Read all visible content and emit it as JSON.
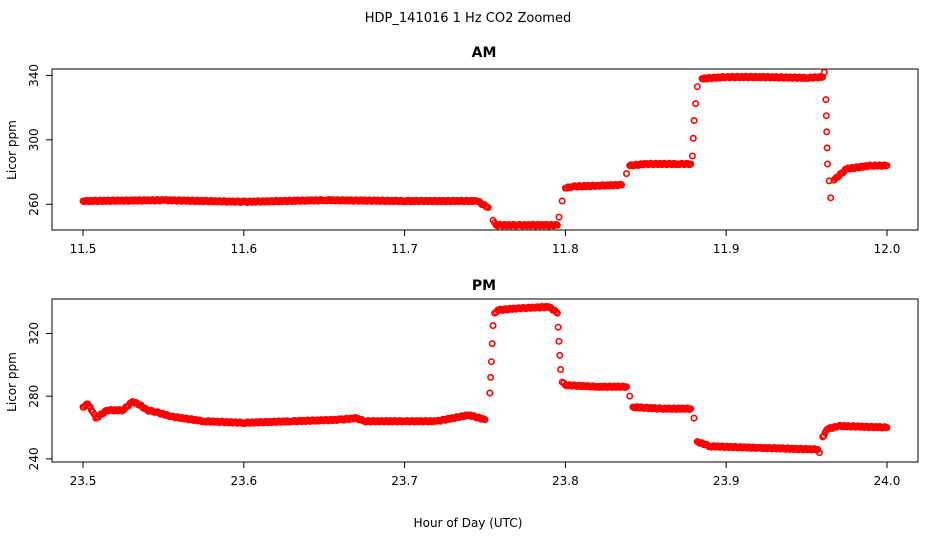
{
  "figure": {
    "title": "HDP_141016  1 Hz CO2 Zoomed",
    "xlabel": "Hour of Day (UTC)"
  },
  "colors": {
    "points": "#ff0000",
    "axes": "#000000",
    "background": "#ffffff"
  },
  "chart_data": [
    {
      "type": "scatter",
      "title": "AM",
      "xlabel": "Hour of Day (UTC)",
      "ylabel": "Licor ppm",
      "xlim": [
        11.5,
        12.0
      ],
      "ylim": [
        244,
        344
      ],
      "x_ticks": [
        "11.5",
        "11.6",
        "11.7",
        "11.8",
        "11.9",
        "12.0"
      ],
      "y_ticks": [
        "260",
        "300",
        "340"
      ],
      "grid": false,
      "series": [
        {
          "marker": "open-circle",
          "color": "#ff0000",
          "x": [
            11.5,
            11.55,
            11.6,
            11.65,
            11.7,
            11.745,
            11.752,
            11.755,
            11.757,
            11.77,
            11.795,
            11.796,
            11.798,
            11.8,
            11.805,
            11.82,
            11.835,
            11.838,
            11.84,
            11.85,
            11.87,
            11.878,
            11.879,
            11.88,
            11.882,
            11.885,
            11.9,
            11.92,
            11.95,
            11.96,
            11.961,
            11.962,
            11.963,
            11.965,
            11.967,
            11.975,
            11.99,
            12.0
          ],
          "y": [
            262,
            262.5,
            261.5,
            262.5,
            262,
            262,
            258,
            250,
            247,
            247,
            247,
            252,
            262,
            270,
            271,
            271.5,
            272,
            279,
            284,
            285,
            285,
            285,
            290,
            312,
            333,
            338,
            339,
            339,
            338.5,
            339,
            342,
            325,
            285,
            264,
            275,
            282,
            284,
            284
          ]
        }
      ]
    },
    {
      "type": "scatter",
      "title": "PM",
      "xlabel": "Hour of Day (UTC)",
      "ylabel": "Licor ppm",
      "xlim": [
        23.5,
        24.0
      ],
      "ylim": [
        238,
        342
      ],
      "x_ticks": [
        "23.5",
        "23.6",
        "23.7",
        "23.8",
        "23.9",
        "24.0"
      ],
      "y_ticks": [
        "240",
        "280",
        "320"
      ],
      "grid": false,
      "series": [
        {
          "marker": "open-circle",
          "color": "#ff0000",
          "x": [
            23.5,
            23.503,
            23.506,
            23.508,
            23.515,
            23.525,
            23.53,
            23.533,
            23.54,
            23.545,
            23.555,
            23.575,
            23.6,
            23.63,
            23.66,
            23.67,
            23.675,
            23.7,
            23.72,
            23.74,
            23.75,
            23.753,
            23.754,
            23.755,
            23.756,
            23.758,
            23.77,
            23.79,
            23.795,
            23.796,
            23.797,
            23.798,
            23.8,
            23.82,
            23.838,
            23.84,
            23.842,
            23.86,
            23.878,
            23.88,
            23.882,
            23.89,
            23.92,
            23.957,
            23.958,
            23.96,
            23.963,
            23.97,
            24.0
          ],
          "y": [
            273,
            275,
            270,
            266,
            271,
            271,
            276,
            276,
            271,
            270,
            267,
            264,
            263,
            264,
            265,
            266,
            264,
            264,
            264,
            268,
            265,
            282,
            302,
            325,
            333,
            335,
            336,
            337,
            333,
            315,
            297,
            289,
            287,
            286,
            286,
            280,
            273,
            272,
            272,
            266,
            251,
            248,
            247,
            246,
            244,
            254,
            259,
            261,
            260
          ]
        }
      ]
    }
  ]
}
